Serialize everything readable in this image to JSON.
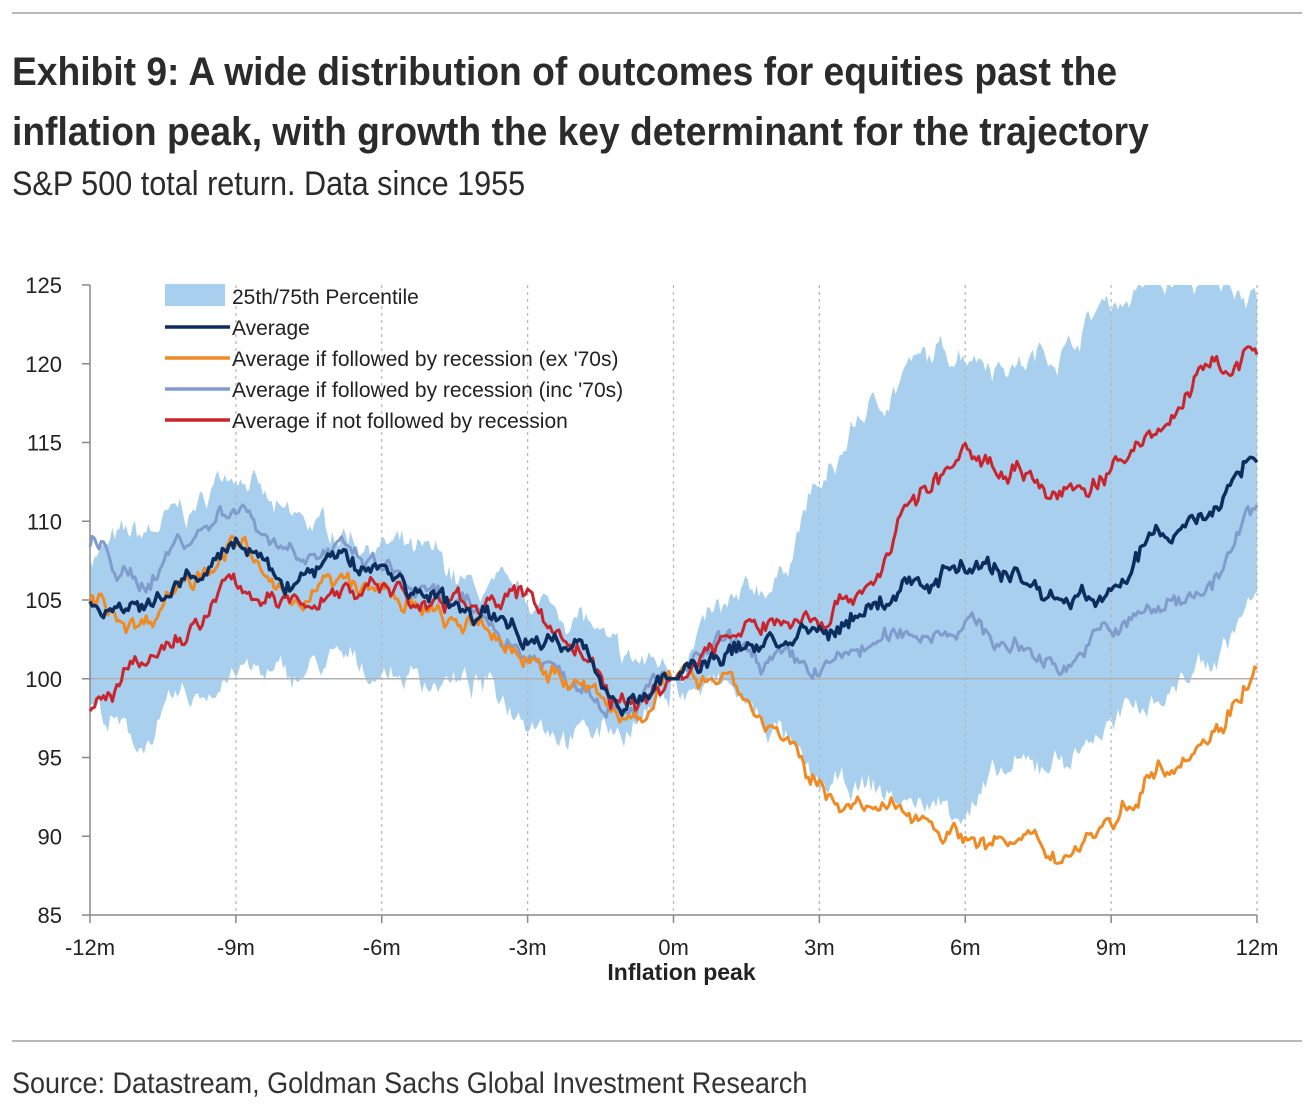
{
  "header": {
    "title": "Exhibit 9: A wide distribution of outcomes for equities past the inflation peak, with growth the key determinant for the trajectory",
    "subtitle": "S&P 500 total return. Data since 1955"
  },
  "footer": {
    "source": "Source: Datastream, Goldman Sachs Global Investment Research"
  },
  "chart_data": {
    "type": "line",
    "title": "",
    "xlabel": "Inflation peak",
    "ylabel": "",
    "xlim": [
      -12,
      12
    ],
    "ylim": [
      85,
      125
    ],
    "x_ticks": [
      -12,
      -9,
      -6,
      -3,
      0,
      3,
      6,
      9,
      12
    ],
    "x_tick_labels": [
      "-12m",
      "-9m",
      "-6m",
      "-3m",
      "0m",
      "3m",
      "6m",
      "9m",
      "12m"
    ],
    "y_ticks": [
      85,
      90,
      95,
      100,
      105,
      110,
      115,
      120,
      125
    ],
    "y_tick_labels": [
      "85",
      "90",
      "95",
      "100",
      "105",
      "110",
      "115",
      "120",
      "125"
    ],
    "reference_line": 100,
    "vertical_gridlines": "dashed at each 3-month tick",
    "legend_position": "top-left",
    "x": [
      -12,
      -11,
      -10,
      -9,
      -8,
      -7,
      -6,
      -5,
      -4,
      -3,
      -2,
      -1,
      0,
      1,
      2,
      3,
      4,
      5,
      6,
      7,
      8,
      9,
      10,
      11,
      12
    ],
    "band": {
      "name": "25th/75th Percentile",
      "color": "#a8d0ee",
      "lower": [
        98,
        96,
        98.5,
        100.5,
        100,
        101,
        100.5,
        100,
        99.5,
        98,
        96.5,
        97,
        99,
        99.5,
        97,
        93,
        93,
        92,
        92,
        94,
        95,
        97,
        99,
        101,
        105
      ],
      "upper": [
        108,
        109,
        110.5,
        113.5,
        110,
        109.5,
        108.5,
        107.5,
        105.5,
        105,
        104,
        101,
        101,
        104,
        106,
        112,
        117,
        120,
        121,
        120,
        121,
        124,
        125,
        125,
        125
      ]
    },
    "series": [
      {
        "name": "Average",
        "color": "#0d2d5e",
        "values": [
          104.5,
          104,
          106,
          108.5,
          106,
          107.5,
          107,
          105,
          104,
          103,
          102,
          98.5,
          100,
          101.5,
          102.5,
          102.5,
          104.5,
          106,
          107.5,
          106.5,
          105,
          105.5,
          109,
          110.5,
          114.5
        ]
      },
      {
        "name": "Average if followed by recession (ex '70s)",
        "color": "#f08a24",
        "values": [
          105,
          103.5,
          106.5,
          108.5,
          105,
          106,
          105.5,
          104,
          103,
          101.5,
          99.5,
          97.5,
          100,
          100.5,
          97,
          93,
          91.5,
          91.5,
          90,
          89.5,
          89,
          91,
          94.5,
          96.5,
          100.5
        ]
      },
      {
        "name": "Average if followed by recession (inc '70s)",
        "color": "#7f9ccc",
        "values": [
          108.5,
          106,
          109,
          111,
          108.5,
          108,
          107,
          105,
          104,
          101.5,
          100,
          98.5,
          100,
          102,
          101,
          100.5,
          102,
          103,
          103.5,
          102,
          101,
          103,
          104.5,
          106,
          110.5
        ]
      },
      {
        "name": "Average if not followed by recession",
        "color": "#c8262e",
        "values": [
          98,
          100.5,
          103,
          106,
          104.5,
          105.5,
          106,
          104.5,
          105,
          105,
          102,
          98,
          100,
          102.5,
          103.5,
          104,
          106,
          111.5,
          114,
          113.5,
          111.5,
          113,
          116,
          119.5,
          120.5
        ]
      }
    ]
  }
}
